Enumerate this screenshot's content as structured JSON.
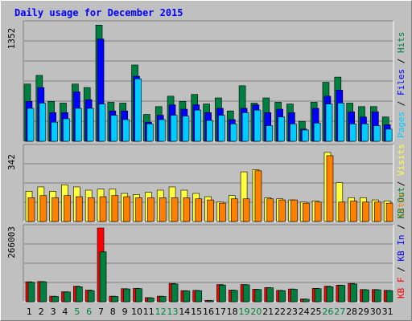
{
  "colors": {
    "background": "#c0c0c0",
    "plot_bg": "#c0c0c0",
    "title": "#0000ff",
    "grid": "#808080",
    "pages": "#00ccff",
    "files": "#0000ff",
    "hits": "#008040",
    "visits": "#ffff40",
    "sites": "#ff8000",
    "kb_f": "#ff0000",
    "kb_in": "#0000ff",
    "kb_out": "#008040",
    "weekend_day": "#008040",
    "weekday": "#000000"
  },
  "chart_data": [
    {
      "type": "bar",
      "title": "Daily usage for December 2015",
      "ylabel_parts": [
        "Pages",
        "Files",
        "Hits"
      ],
      "ymax_label": "1352",
      "ylim": [
        0,
        1352
      ],
      "x": [
        1,
        2,
        3,
        4,
        5,
        6,
        7,
        8,
        9,
        10,
        11,
        12,
        13,
        14,
        15,
        16,
        17,
        18,
        19,
        20,
        21,
        22,
        23,
        24,
        25,
        26,
        27,
        28,
        29,
        30,
        31
      ],
      "weekend_days": [
        5,
        6,
        12,
        13,
        19,
        20,
        26,
        27
      ],
      "series": [
        {
          "name": "Hits",
          "values": [
            660,
            760,
            460,
            440,
            660,
            620,
            1340,
            450,
            440,
            880,
            310,
            400,
            520,
            460,
            540,
            430,
            500,
            350,
            640,
            440,
            500,
            450,
            430,
            230,
            450,
            680,
            740,
            440,
            400,
            400,
            280
          ]
        },
        {
          "name": "Files",
          "values": [
            460,
            620,
            330,
            330,
            570,
            480,
            1180,
            350,
            350,
            750,
            220,
            300,
            420,
            370,
            420,
            330,
            380,
            250,
            380,
            420,
            330,
            370,
            330,
            140,
            380,
            520,
            590,
            340,
            280,
            340,
            190
          ]
        },
        {
          "name": "Pages",
          "values": [
            380,
            440,
            220,
            260,
            380,
            380,
            430,
            300,
            250,
            720,
            200,
            250,
            300,
            290,
            360,
            240,
            300,
            200,
            330,
            360,
            180,
            280,
            200,
            130,
            210,
            430,
            440,
            200,
            200,
            180,
            140
          ]
        }
      ]
    },
    {
      "type": "bar",
      "ylabel_parts": [
        "Sites",
        "Visits"
      ],
      "ymax_label": "342",
      "ylim": [
        0,
        342
      ],
      "x": [
        1,
        2,
        3,
        4,
        5,
        6,
        7,
        8,
        9,
        10,
        11,
        12,
        13,
        14,
        15,
        16,
        17,
        18,
        19,
        20,
        21,
        22,
        23,
        24,
        25,
        26,
        27,
        28,
        29,
        30,
        31
      ],
      "series": [
        {
          "name": "Visits",
          "values": [
            140,
            160,
            140,
            170,
            160,
            145,
            150,
            150,
            130,
            125,
            135,
            145,
            160,
            145,
            130,
            115,
            90,
            120,
            230,
            240,
            110,
            105,
            100,
            90,
            95,
            320,
            180,
            110,
            110,
            100,
            95
          ]
        },
        {
          "name": "Sites",
          "values": [
            110,
            120,
            110,
            120,
            115,
            110,
            115,
            120,
            115,
            110,
            110,
            110,
            110,
            110,
            105,
            100,
            85,
            105,
            105,
            235,
            105,
            100,
            100,
            85,
            90,
            305,
            90,
            95,
            90,
            90,
            85
          ]
        }
      ]
    },
    {
      "type": "bar",
      "ylabel_parts": [
        "KB F",
        "KB In",
        "KB Out"
      ],
      "ymax_label": "266003",
      "ylim": [
        0,
        266003
      ],
      "x": [
        1,
        2,
        3,
        4,
        5,
        6,
        7,
        8,
        9,
        10,
        11,
        12,
        13,
        14,
        15,
        16,
        17,
        18,
        19,
        20,
        21,
        22,
        23,
        24,
        25,
        26,
        27,
        28,
        29,
        30,
        31
      ],
      "series": [
        {
          "name": "KB F",
          "values": [
            72000,
            73000,
            20000,
            36000,
            56000,
            42000,
            266000,
            20000,
            47000,
            48000,
            15000,
            20000,
            66000,
            40000,
            41000,
            5000,
            62000,
            42000,
            62000,
            45000,
            51000,
            41000,
            46000,
            10000,
            48000,
            56000,
            60000,
            66000,
            44000,
            44000,
            41000
          ]
        },
        {
          "name": "KB Out",
          "values": [
            70000,
            72000,
            19000,
            35000,
            54000,
            40000,
            180000,
            19000,
            46000,
            47000,
            14000,
            19000,
            64000,
            39000,
            40000,
            4000,
            60000,
            41000,
            61000,
            44000,
            50000,
            40000,
            45000,
            9000,
            47000,
            54000,
            59000,
            64000,
            43000,
            43000,
            40000
          ]
        }
      ]
    }
  ]
}
